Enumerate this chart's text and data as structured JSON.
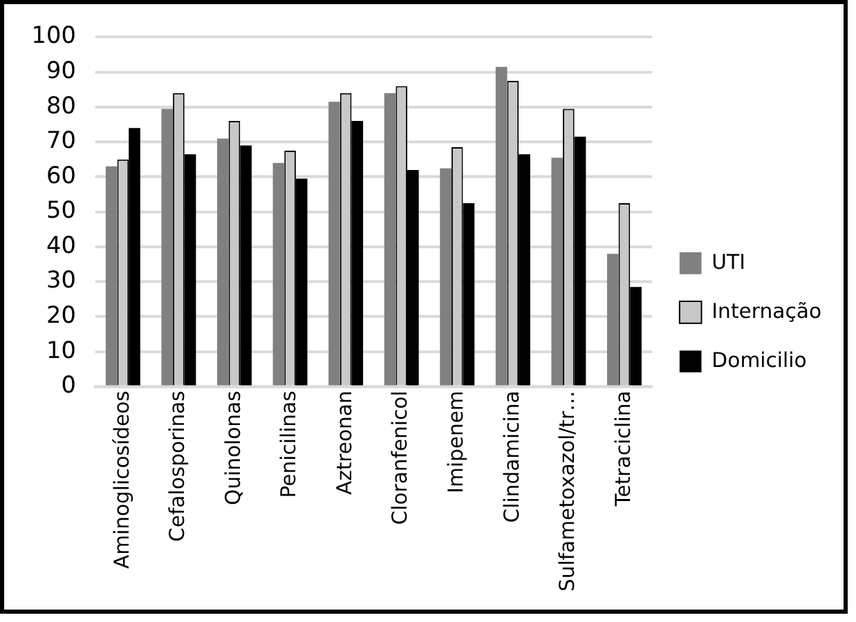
{
  "chart_data": {
    "type": "bar",
    "categories": [
      "Aminoglicosídeos",
      "Cefalosporinas",
      "Quinolonas",
      "Penicilinas",
      "Aztreonan",
      "Cloranfenicol",
      "Imipenem",
      "Clindamicina",
      "Sulfametoxazol/tr…",
      "Tetraciclina"
    ],
    "series": [
      {
        "name": "UTI",
        "color": "#808080",
        "values": [
          63,
          79.5,
          71,
          64,
          81.5,
          84,
          62.5,
          91.5,
          65.5,
          38
        ]
      },
      {
        "name": "Internação",
        "color": "#c8c8c8",
        "values": [
          65,
          84,
          76,
          67.5,
          84,
          86,
          68.5,
          87.5,
          79.5,
          52.5
        ]
      },
      {
        "name": "Domicilio",
        "color": "#000000",
        "values": [
          74,
          66.5,
          69,
          59.5,
          76,
          62,
          52.5,
          66.5,
          71.5,
          28.5
        ]
      }
    ],
    "ylim": [
      0,
      100
    ],
    "yticks": [
      0,
      10,
      20,
      30,
      40,
      50,
      60,
      70,
      80,
      90,
      100
    ],
    "grid": "y",
    "legend": "right"
  }
}
